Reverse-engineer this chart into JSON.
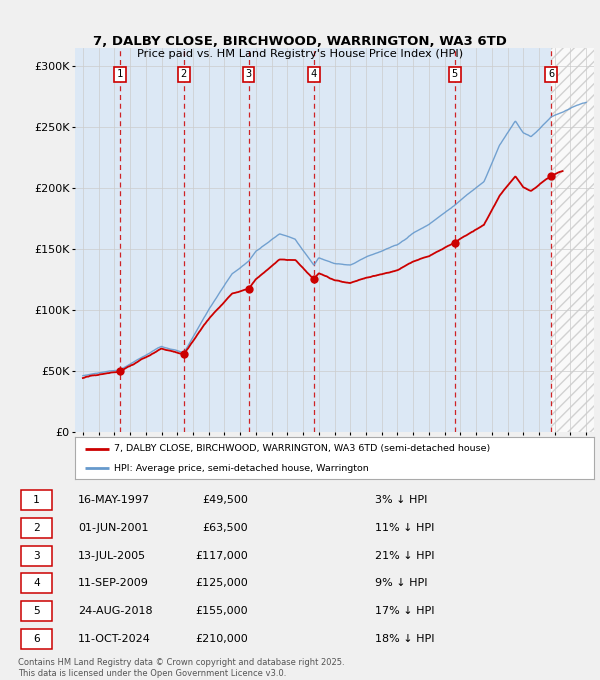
{
  "title_line1": "7, DALBY CLOSE, BIRCHWOOD, WARRINGTON, WA3 6TD",
  "title_line2": "Price paid vs. HM Land Registry's House Price Index (HPI)",
  "sale_color": "#cc0000",
  "hpi_color": "#6699cc",
  "sale_points": [
    {
      "year": 1997.37,
      "price": 49500,
      "label": "1"
    },
    {
      "year": 2001.42,
      "price": 63500,
      "label": "2"
    },
    {
      "year": 2005.54,
      "price": 117000,
      "label": "3"
    },
    {
      "year": 2009.69,
      "price": 125000,
      "label": "4"
    },
    {
      "year": 2018.65,
      "price": 155000,
      "label": "5"
    },
    {
      "year": 2024.78,
      "price": 210000,
      "label": "6"
    }
  ],
  "table_data": [
    [
      "1",
      "16-MAY-1997",
      "£49,500",
      "3% ↓ HPI"
    ],
    [
      "2",
      "01-JUN-2001",
      "£63,500",
      "11% ↓ HPI"
    ],
    [
      "3",
      "13-JUL-2005",
      "£117,000",
      "21% ↓ HPI"
    ],
    [
      "4",
      "11-SEP-2009",
      "£125,000",
      "9% ↓ HPI"
    ],
    [
      "5",
      "24-AUG-2018",
      "£155,000",
      "17% ↓ HPI"
    ],
    [
      "6",
      "11-OCT-2024",
      "£210,000",
      "18% ↓ HPI"
    ]
  ],
  "legend_sale": "7, DALBY CLOSE, BIRCHWOOD, WARRINGTON, WA3 6TD (semi-detached house)",
  "legend_hpi": "HPI: Average price, semi-detached house, Warrington",
  "footer": "Contains HM Land Registry data © Crown copyright and database right 2025.\nThis data is licensed under the Open Government Licence v3.0.",
  "xmin": 1994.5,
  "xmax": 2027.5,
  "ymin": 0,
  "ymax": 315000,
  "yticks": [
    0,
    50000,
    100000,
    150000,
    200000,
    250000,
    300000
  ],
  "ytick_labels": [
    "£0",
    "£50K",
    "£100K",
    "£150K",
    "£200K",
    "£250K",
    "£300K"
  ],
  "future_start": 2024.78,
  "band_color": "#dce8f5",
  "fig_bg": "#f0f0f0"
}
